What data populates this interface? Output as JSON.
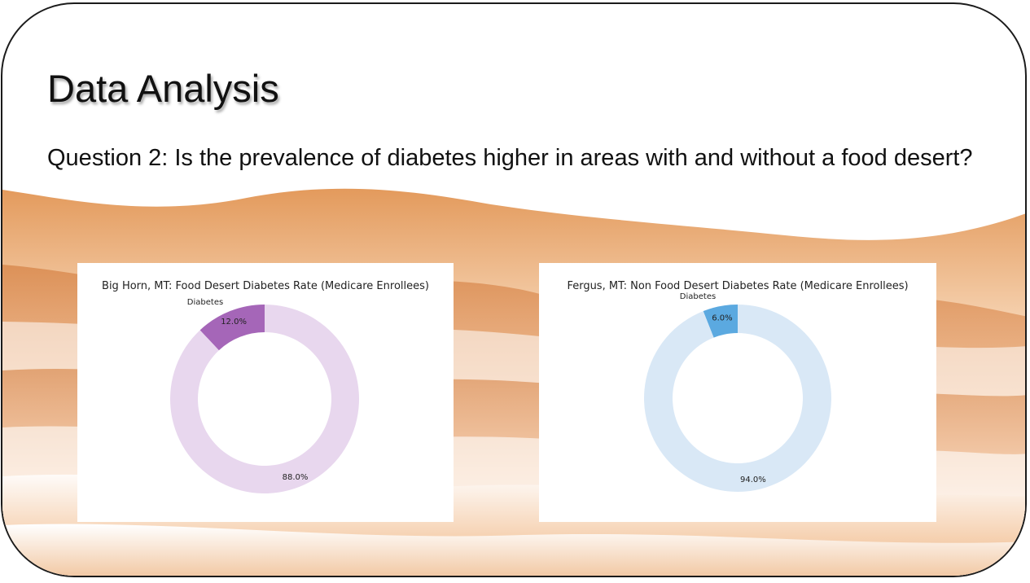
{
  "slide": {
    "title": "Data Analysis",
    "question": "Question 2:  Is the prevalence of diabetes higher in areas with and without a food desert?"
  },
  "colors": {
    "desert_dark": "#d98a4f",
    "desert_light": "#f4c9a3",
    "chart1_primary": "#a566b8",
    "chart1_secondary": "#e8d7ee",
    "chart2_primary": "#5ba9e0",
    "chart2_secondary": "#d9e8f6"
  },
  "chart_data": [
    {
      "type": "pie",
      "style": "donut",
      "title": "Big Horn, MT: Food Desert Diabetes Rate (Medicare Enrollees)",
      "labels": [
        "Diabetes",
        ""
      ],
      "values": [
        12.0,
        88.0
      ],
      "value_labels": [
        "12.0%",
        "88.0%"
      ],
      "colors": [
        "#a566b8",
        "#e8d7ee"
      ]
    },
    {
      "type": "pie",
      "style": "donut",
      "title": "Fergus, MT: Non Food Desert Diabetes Rate (Medicare Enrollees)",
      "labels": [
        "Diabetes",
        ""
      ],
      "values": [
        6.0,
        94.0
      ],
      "value_labels": [
        "6.0%",
        "94.0%"
      ],
      "colors": [
        "#5ba9e0",
        "#d9e8f6"
      ]
    }
  ]
}
